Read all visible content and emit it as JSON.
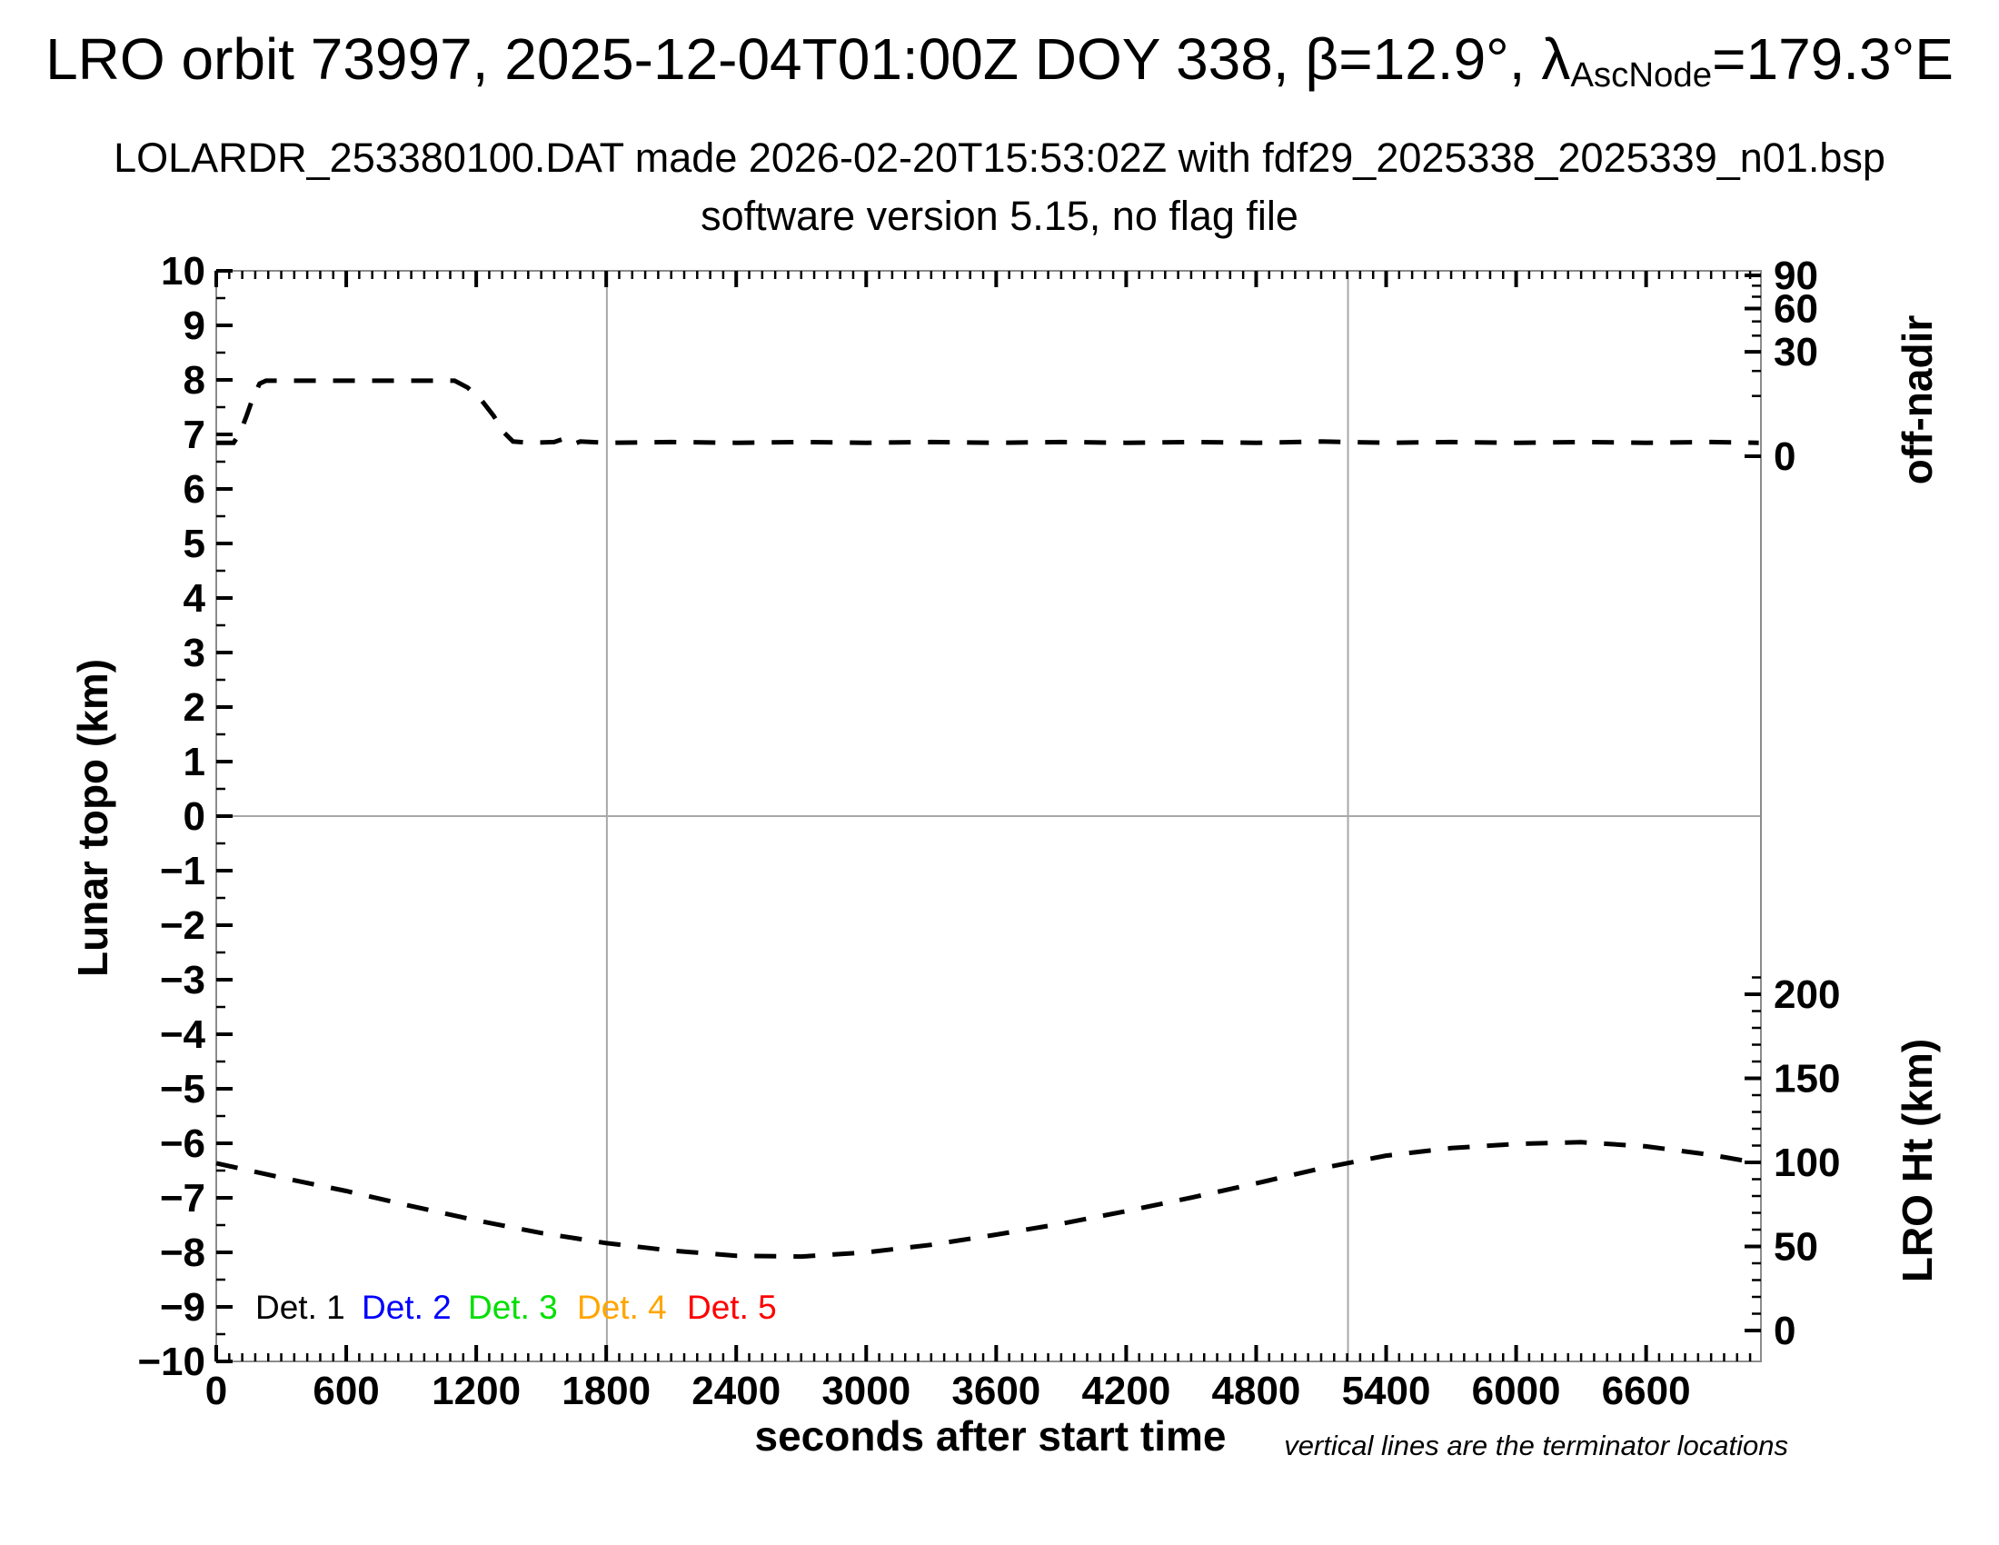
{
  "header": {
    "title_prefix": "LRO orbit 73997, 2025-12-04T01:00Z DOY 338, β=12.9°, λ",
    "title_sub": "AscNode",
    "title_suffix": "=179.3°E",
    "subtitle": "LOLARDR_253380100.DAT made 2026-02-20T15:53:02Z with fdf29_2025338_2025339_n01.bsp",
    "software_line": "software version 5.15, no flag file"
  },
  "chart_data": {
    "type": "line",
    "title": "LRO orbit 73997, 2025-12-04T01:00Z DOY 338, beta=12.9deg, lambda_AscNode=179.3degE",
    "x_axis": {
      "label": "seconds after start time",
      "range": [
        0,
        7130
      ],
      "major_ticks": [
        0,
        600,
        1200,
        1800,
        2400,
        3000,
        3600,
        4200,
        4800,
        5400,
        6000,
        6600
      ],
      "minor_step": 60
    },
    "y_left": {
      "label": "Lunar topo (km)",
      "range": [
        -10,
        10
      ],
      "major_step": 1,
      "minor_step": 0.5
    },
    "y_right_top": {
      "label": "off-nadir",
      "units": "degrees",
      "scale": "sqrt",
      "labeled_ticks": [
        0,
        30,
        60,
        90
      ],
      "minor_step": 10
    },
    "y_right_bottom": {
      "label": "LRO Ht (km)",
      "labeled_ticks": [
        0,
        50,
        100,
        150,
        200
      ],
      "minor_step": 10,
      "minor_max": 210
    },
    "terminator_lines_s": [
      1803,
      5224
    ],
    "grid": {
      "zero_line_left_axis": 0,
      "line_color": "#a8a8a8",
      "frame_color": "#8c8c8c"
    },
    "series": [
      {
        "name": "off-nadir angle",
        "axis": "right_top",
        "style": "dashed",
        "color": "#000000",
        "points": [
          [
            0,
            0.5
          ],
          [
            80,
            0.5
          ],
          [
            110,
            1.5
          ],
          [
            140,
            4.5
          ],
          [
            170,
            9.5
          ],
          [
            200,
            14.5
          ],
          [
            230,
            15.7
          ],
          [
            400,
            15.7
          ],
          [
            600,
            15.7
          ],
          [
            800,
            15.7
          ],
          [
            1000,
            15.7
          ],
          [
            1100,
            15.7
          ],
          [
            1160,
            13.0
          ],
          [
            1220,
            9.0
          ],
          [
            1280,
            4.5
          ],
          [
            1330,
            1.5
          ],
          [
            1370,
            0.6
          ],
          [
            1450,
            0.5
          ],
          [
            1560,
            0.55
          ],
          [
            1600,
            0.8
          ],
          [
            1640,
            0.35
          ],
          [
            1680,
            0.6
          ],
          [
            1800,
            0.5
          ],
          [
            2100,
            0.55
          ],
          [
            2400,
            0.5
          ],
          [
            2700,
            0.55
          ],
          [
            3000,
            0.5
          ],
          [
            3300,
            0.55
          ],
          [
            3600,
            0.5
          ],
          [
            3900,
            0.55
          ],
          [
            4200,
            0.5
          ],
          [
            4500,
            0.55
          ],
          [
            4800,
            0.5
          ],
          [
            5100,
            0.6
          ],
          [
            5400,
            0.5
          ],
          [
            5700,
            0.55
          ],
          [
            6000,
            0.5
          ],
          [
            6300,
            0.55
          ],
          [
            6600,
            0.5
          ],
          [
            6900,
            0.55
          ],
          [
            7120,
            0.5
          ]
        ]
      },
      {
        "name": "LRO height",
        "axis": "right_bottom",
        "style": "dashed",
        "color": "#000000",
        "points": [
          [
            0,
            99.5
          ],
          [
            300,
            91
          ],
          [
            600,
            83
          ],
          [
            900,
            74
          ],
          [
            1200,
            65.5
          ],
          [
            1500,
            58
          ],
          [
            1800,
            52
          ],
          [
            2100,
            47.5
          ],
          [
            2400,
            44.5
          ],
          [
            2700,
            44
          ],
          [
            3000,
            46.5
          ],
          [
            3300,
            51
          ],
          [
            3600,
            57
          ],
          [
            3900,
            63.5
          ],
          [
            4200,
            71
          ],
          [
            4500,
            79
          ],
          [
            4800,
            87.5
          ],
          [
            5100,
            96.5
          ],
          [
            5400,
            104
          ],
          [
            5700,
            108.5
          ],
          [
            6000,
            111
          ],
          [
            6300,
            112
          ],
          [
            6600,
            109.5
          ],
          [
            6900,
            104.5
          ],
          [
            7120,
            99.5
          ]
        ]
      }
    ],
    "legend": [
      {
        "label": "Det. 1",
        "color": "#000000"
      },
      {
        "label": "Det. 2",
        "color": "#0000ff"
      },
      {
        "label": "Det. 3",
        "color": "#00e000"
      },
      {
        "label": "Det. 4",
        "color": "#ffa500"
      },
      {
        "label": "Det. 5",
        "color": "#ff0000"
      }
    ],
    "annotation": "vertical lines are the terminator locations"
  }
}
